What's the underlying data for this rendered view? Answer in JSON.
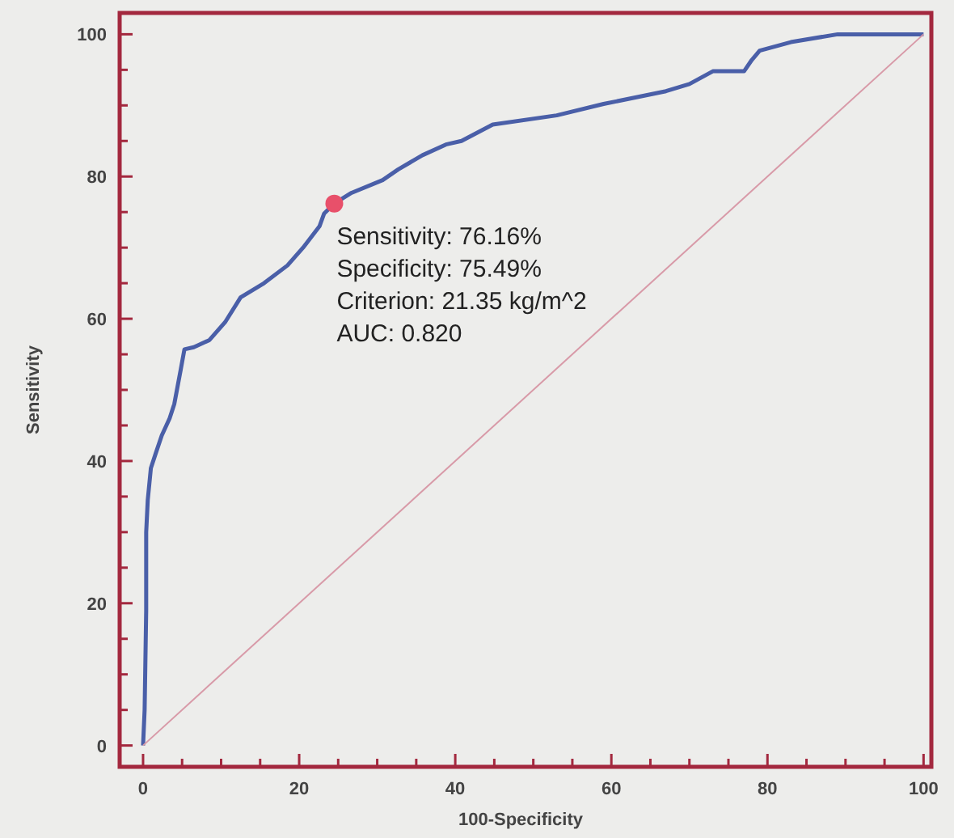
{
  "chart_data": {
    "type": "line",
    "xlabel": "100-Specificity",
    "ylabel": "Sensitivity",
    "xlim": [
      -3,
      101
    ],
    "ylim": [
      -3,
      103
    ],
    "xticks": [
      0,
      {
        "value": 5,
        "label": null
      },
      {
        "value": 10,
        "label": null
      },
      {
        "value": 15,
        "label": null
      },
      20,
      {
        "value": 25,
        "label": null
      },
      {
        "value": 30,
        "label": null
      },
      {
        "value": 35,
        "label": null
      },
      40,
      {
        "value": 45,
        "label": null
      },
      {
        "value": 50,
        "label": null
      },
      {
        "value": 55,
        "label": null
      },
      60,
      {
        "value": 65,
        "label": null
      },
      {
        "value": 70,
        "label": null
      },
      {
        "value": 75,
        "label": null
      },
      80,
      {
        "value": 85,
        "label": null
      },
      {
        "value": 90,
        "label": null
      },
      {
        "value": 95,
        "label": null
      },
      100
    ],
    "yticks": [
      0,
      {
        "value": 5,
        "label": null
      },
      {
        "value": 10,
        "label": null
      },
      {
        "value": 15,
        "label": null
      },
      20,
      {
        "value": 25,
        "label": null
      },
      {
        "value": 30,
        "label": null
      },
      {
        "value": 35,
        "label": null
      },
      40,
      {
        "value": 45,
        "label": null
      },
      {
        "value": 50,
        "label": null
      },
      {
        "value": 55,
        "label": null
      },
      60,
      {
        "value": 65,
        "label": null
      },
      {
        "value": 70,
        "label": null
      },
      {
        "value": 75,
        "label": null
      },
      80,
      {
        "value": 85,
        "label": null
      },
      {
        "value": 90,
        "label": null
      },
      {
        "value": 95,
        "label": null
      },
      100
    ],
    "grid": false,
    "marker": "none",
    "line_style": "solid",
    "annotations": [
      "Sensitivity: 76.16%",
      "Specificity: 75.49%",
      "Criterion: 21.35 kg/m^2",
      "AUC: 0.820"
    ],
    "series": [
      {
        "color": "#4a5fa8",
        "x": [
          0,
          0.2,
          0.4,
          0.4,
          0.6,
          1,
          1.6,
          2.4,
          3.4,
          4,
          4.8,
          5.3,
          6.5,
          8.5,
          10.5,
          12.5,
          15.5,
          18.5,
          20.5,
          22.6,
          23.2,
          24.5,
          26.7,
          30.7,
          32.7,
          35.8,
          38.8,
          40.8,
          44.8,
          53,
          59,
          67,
          70,
          73,
          77,
          78,
          79,
          83,
          89,
          96,
          100
        ],
        "values": [
          0,
          5,
          19,
          30,
          34.5,
          39,
          41,
          43.6,
          46,
          48,
          52.7,
          55.7,
          56,
          57,
          59.5,
          63,
          65,
          67.5,
          70,
          73,
          74.8,
          76.2,
          77.7,
          79.5,
          81,
          83,
          84.5,
          85,
          87.3,
          88.6,
          90.2,
          92,
          93,
          94.8,
          94.8,
          96.4,
          97.7,
          98.9,
          100,
          100,
          100
        ]
      },
      {
        "color": "#d89aa8",
        "x": [
          0,
          100
        ],
        "values": [
          0,
          100
        ]
      },
      {
        "type": "scatter",
        "color": "#e8506a",
        "marker": "circle",
        "x": [
          24.5
        ],
        "values": [
          76.2
        ]
      }
    ]
  }
}
